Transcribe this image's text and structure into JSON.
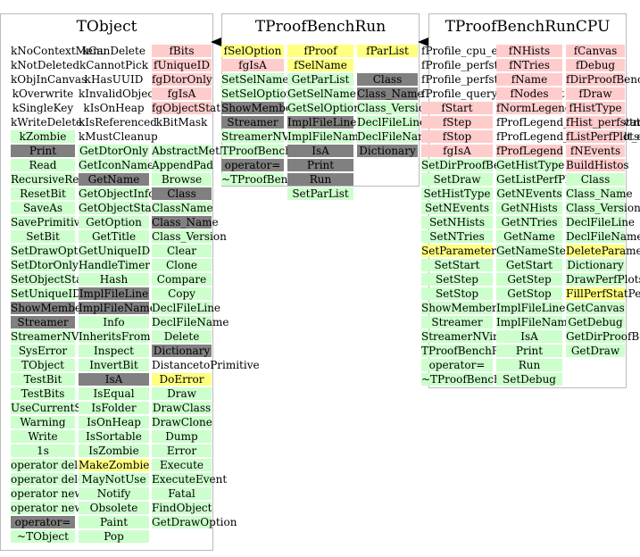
{
  "diagram": {
    "classes": [
      {
        "name": "TObject",
        "columns": [
          [
            [
              "kNoContextMenu",
              "white"
            ],
            [
              "kNotDeleted",
              "white"
            ],
            [
              "kObjInCanvas",
              "white"
            ],
            [
              "kOverwrite",
              "white"
            ],
            [
              "kSingleKey",
              "white"
            ],
            [
              "kWriteDelete",
              "white"
            ],
            [
              "kZombie",
              "green"
            ],
            [
              "Print",
              "gray"
            ],
            [
              "Read",
              "green"
            ],
            [
              "RecursiveRemove",
              "green"
            ],
            [
              "ResetBit",
              "green"
            ],
            [
              "SaveAs",
              "green"
            ],
            [
              "SavePrimitive",
              "green"
            ],
            [
              "SetBit",
              "green"
            ],
            [
              "SetDrawOption",
              "green"
            ],
            [
              "SetDtorOnly",
              "green"
            ],
            [
              "SetObjectStat",
              "green"
            ],
            [
              "SetUniqueID",
              "green"
            ],
            [
              "ShowMembers",
              "gray"
            ],
            [
              "Streamer",
              "gray"
            ],
            [
              "StreamerNVirtual",
              "green"
            ],
            [
              "SysError",
              "green"
            ],
            [
              "TObject",
              "green"
            ],
            [
              "TestBit",
              "green"
            ],
            [
              "TestBits",
              "green"
            ],
            [
              "UseCurrentStyle",
              "green"
            ],
            [
              "Warning",
              "green"
            ],
            [
              "Write",
              "green"
            ],
            [
              "1s",
              "green"
            ],
            [
              "operator delete",
              "green"
            ],
            [
              "operator delete[]",
              "green"
            ],
            [
              "operator new",
              "green"
            ],
            [
              "operator new[]",
              "green"
            ],
            [
              "operator=",
              "gray"
            ],
            [
              "~TObject",
              "green"
            ]
          ],
          [
            [
              "kCanDelete",
              "white"
            ],
            [
              "kCannotPick",
              "white"
            ],
            [
              "kHasUUID",
              "white"
            ],
            [
              "kInvalidObject",
              "white"
            ],
            [
              "kIsOnHeap",
              "white"
            ],
            [
              "kIsReferenced",
              "white"
            ],
            [
              "kMustCleanup",
              "white"
            ],
            [
              "GetDtorOnly",
              "green"
            ],
            [
              "GetIconName",
              "green"
            ],
            [
              "GetName",
              "gray"
            ],
            [
              "GetObjectInfo",
              "green"
            ],
            [
              "GetObjectStat",
              "green"
            ],
            [
              "GetOption",
              "green"
            ],
            [
              "GetTitle",
              "green"
            ],
            [
              "GetUniqueID",
              "green"
            ],
            [
              "HandleTimer",
              "green"
            ],
            [
              "Hash",
              "green"
            ],
            [
              "ImplFileLine",
              "gray"
            ],
            [
              "ImplFileName",
              "gray"
            ],
            [
              "Info",
              "green"
            ],
            [
              "InheritsFrom",
              "green"
            ],
            [
              "Inspect",
              "green"
            ],
            [
              "InvertBit",
              "green"
            ],
            [
              "IsA",
              "gray"
            ],
            [
              "IsEqual",
              "green"
            ],
            [
              "IsFolder",
              "green"
            ],
            [
              "IsOnHeap",
              "green"
            ],
            [
              "IsSortable",
              "green"
            ],
            [
              "IsZombie",
              "green"
            ],
            [
              "MakeZombie",
              "yellow"
            ],
            [
              "MayNotUse",
              "green"
            ],
            [
              "Notify",
              "green"
            ],
            [
              "Obsolete",
              "green"
            ],
            [
              "Paint",
              "green"
            ],
            [
              "Pop",
              "green"
            ]
          ],
          [
            [
              "fBits",
              "pink"
            ],
            [
              "fUniqueID",
              "pink"
            ],
            [
              "fgDtorOnly",
              "pink"
            ],
            [
              "fgIsA",
              "pink"
            ],
            [
              "fgObjectStat",
              "pink"
            ],
            [
              "kBitMask",
              "white"
            ],
            [
              "",
              "white"
            ],
            [
              "AbstractMethod",
              "green"
            ],
            [
              "AppendPad",
              "green"
            ],
            [
              "Browse",
              "green"
            ],
            [
              "Class",
              "gray"
            ],
            [
              "ClassName",
              "green"
            ],
            [
              "Class_Name",
              "gray"
            ],
            [
              "Class_Version",
              "green"
            ],
            [
              "Clear",
              "green"
            ],
            [
              "Clone",
              "green"
            ],
            [
              "Compare",
              "green"
            ],
            [
              "Copy",
              "green"
            ],
            [
              "DeclFileLine",
              "green"
            ],
            [
              "DeclFileName",
              "green"
            ],
            [
              "Delete",
              "green"
            ],
            [
              "Dictionary",
              "gray"
            ],
            [
              "DistancetoPrimitive",
              "white"
            ],
            [
              "DoError",
              "yellow"
            ],
            [
              "Draw",
              "green"
            ],
            [
              "DrawClass",
              "green"
            ],
            [
              "DrawClone",
              "green"
            ],
            [
              "Dump",
              "green"
            ],
            [
              "Error",
              "green"
            ],
            [
              "Execute",
              "green"
            ],
            [
              "ExecuteEvent",
              "green"
            ],
            [
              "Fatal",
              "green"
            ],
            [
              "FindObject",
              "green"
            ],
            [
              "GetDrawOption",
              "green"
            ]
          ]
        ]
      },
      {
        "name": "TProofBenchRun",
        "columns": [
          [
            [
              "fSelOption",
              "yellow"
            ],
            [
              "fgIsA",
              "pink"
            ],
            [
              "SetSelName",
              "green"
            ],
            [
              "SetSelOption",
              "green"
            ],
            [
              "ShowMembers",
              "gray"
            ],
            [
              "Streamer",
              "gray"
            ],
            [
              "StreamerNVirtual",
              "green"
            ],
            [
              "TProofBenchRun",
              "green"
            ],
            [
              "operator=",
              "gray"
            ],
            [
              "~TProofBenchRun",
              "green"
            ]
          ],
          [
            [
              "fProof",
              "yellow"
            ],
            [
              "fSelName",
              "yellow"
            ],
            [
              "GetParList",
              "green"
            ],
            [
              "GetSelName",
              "green"
            ],
            [
              "GetSelOption",
              "green"
            ],
            [
              "ImplFileLine",
              "gray"
            ],
            [
              "ImplFileName",
              "green"
            ],
            [
              "IsA",
              "gray"
            ],
            [
              "Print",
              "gray"
            ],
            [
              "Run",
              "gray"
            ],
            [
              "SetParList",
              "green"
            ]
          ],
          [
            [
              "fParList",
              "yellow"
            ],
            [
              "",
              "white"
            ],
            [
              "Class",
              "gray"
            ],
            [
              "Class_Name",
              "gray"
            ],
            [
              "Class_Version",
              "green"
            ],
            [
              "DeclFileLine",
              "green"
            ],
            [
              "DeclFileName",
              "green"
            ],
            [
              "Dictionary",
              "gray"
            ]
          ]
        ]
      },
      {
        "name": "TProofBenchRunCPU",
        "columns": [
          [
            [
              "fProfile_cpu_eff",
              "white"
            ],
            [
              "fProfile_perfstat_event",
              "white"
            ],
            [
              "fProfile_perfstat_evtmax",
              "white"
            ],
            [
              "fProfile_queryresult_event",
              "white"
            ],
            [
              "fStart",
              "pink"
            ],
            [
              "fStep",
              "pink"
            ],
            [
              "fStop",
              "pink"
            ],
            [
              "fgIsA",
              "pink"
            ],
            [
              "SetDirProofBench",
              "green"
            ],
            [
              "SetDraw",
              "green"
            ],
            [
              "SetHistType",
              "green"
            ],
            [
              "SetNEvents",
              "green"
            ],
            [
              "SetNHists",
              "green"
            ],
            [
              "SetNTries",
              "green"
            ],
            [
              "SetParameters",
              "yellow"
            ],
            [
              "SetStart",
              "green"
            ],
            [
              "SetStep",
              "green"
            ],
            [
              "SetStop",
              "green"
            ],
            [
              "ShowMembers",
              "green"
            ],
            [
              "Streamer",
              "green"
            ],
            [
              "StreamerNVirtual",
              "green"
            ],
            [
              "TProofBenchRunCPU",
              "green"
            ],
            [
              "operator=",
              "green"
            ],
            [
              "~TProofBenchRunCPU",
              "green"
            ]
          ],
          [
            [
              "fNHists",
              "pink"
            ],
            [
              "fNTries",
              "pink"
            ],
            [
              "fName",
              "pink"
            ],
            [
              "fNodes",
              "pink"
            ],
            [
              "fNormLegend",
              "pink"
            ],
            [
              "fProfLegend_perfstat_evtmax",
              "white"
            ],
            [
              "fProfLegend_queryresult_event",
              "white"
            ],
            [
              "fProfLegend",
              "pink"
            ],
            [
              "GetHistType",
              "green"
            ],
            [
              "GetListPerfPlots",
              "green"
            ],
            [
              "GetNEvents",
              "green"
            ],
            [
              "GetNHists",
              "green"
            ],
            [
              "GetNTries",
              "green"
            ],
            [
              "GetName",
              "green"
            ],
            [
              "GetNameStem",
              "green"
            ],
            [
              "GetStart",
              "green"
            ],
            [
              "GetStep",
              "green"
            ],
            [
              "GetStop",
              "green"
            ],
            [
              "ImplFileLine",
              "green"
            ],
            [
              "ImplFileName",
              "green"
            ],
            [
              "IsA",
              "green"
            ],
            [
              "Print",
              "green"
            ],
            [
              "Run",
              "green"
            ],
            [
              "SetDebug",
              "green"
            ]
          ],
          [
            [
              "fCanvas",
              "pink"
            ],
            [
              "fDebug",
              "pink"
            ],
            [
              "fDirProofBench",
              "pink"
            ],
            [
              "fDraw",
              "pink"
            ],
            [
              "fHistType",
              "pink"
            ],
            [
              "fHist_perfstat_event",
              "pink"
            ],
            [
              "fListPerfPlots",
              "pink"
            ],
            [
              "fNEvents",
              "pink"
            ],
            [
              "BuildHistos",
              "pink"
            ],
            [
              "Class",
              "green"
            ],
            [
              "Class_Name",
              "green"
            ],
            [
              "Class_Version",
              "green"
            ],
            [
              "DeclFileLine",
              "green"
            ],
            [
              "DeclFileName",
              "green"
            ],
            [
              "DeleteParameters",
              "yellow"
            ],
            [
              "Dictionary",
              "green"
            ],
            [
              "DrawPerfPlots",
              "green"
            ],
            [
              "FillPerfStatPerfPlots",
              "yellow"
            ],
            [
              "GetCanvas",
              "green"
            ],
            [
              "GetDebug",
              "green"
            ],
            [
              "GetDirProofBench",
              "green"
            ],
            [
              "GetDraw",
              "green"
            ]
          ]
        ]
      }
    ]
  }
}
